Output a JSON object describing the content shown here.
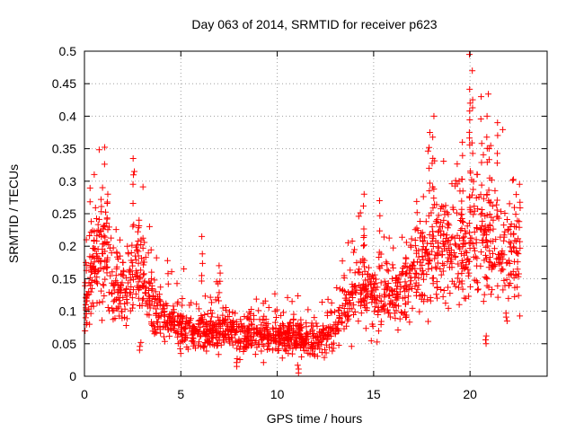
{
  "chart_data": {
    "type": "scatter",
    "title": "Day 063 of 2014, SRMTID for receiver p623",
    "xlabel": "GPS time / hours",
    "ylabel": "SRMTID / TECUs",
    "xlim": [
      0,
      24
    ],
    "ylim": [
      0,
      0.5
    ],
    "xticks": [
      0,
      5,
      10,
      15,
      20
    ],
    "xtick_labels": [
      "0",
      "5",
      "10",
      "15",
      "20"
    ],
    "yticks": [
      0,
      0.05,
      0.1,
      0.15,
      0.2,
      0.25,
      0.3,
      0.35,
      0.4,
      0.45,
      0.5
    ],
    "ytick_labels": [
      "0",
      "0.05",
      "0.1",
      "0.15",
      "0.2",
      "0.25",
      "0.3",
      "0.35",
      "0.4",
      "0.45",
      "0.5"
    ],
    "grid": true,
    "marker": "+",
    "marker_color": "#ff0000",
    "series": [
      {
        "name": "SRMTID p623",
        "profile": [
          {
            "x": 0.0,
            "y": 0.12
          },
          {
            "x": 0.5,
            "y": 0.17
          },
          {
            "x": 1.0,
            "y": 0.19
          },
          {
            "x": 1.5,
            "y": 0.15
          },
          {
            "x": 2.0,
            "y": 0.13
          },
          {
            "x": 2.5,
            "y": 0.15
          },
          {
            "x": 3.0,
            "y": 0.16
          },
          {
            "x": 3.5,
            "y": 0.12
          },
          {
            "x": 4.0,
            "y": 0.09
          },
          {
            "x": 5.0,
            "y": 0.075
          },
          {
            "x": 6.0,
            "y": 0.07
          },
          {
            "x": 7.0,
            "y": 0.07
          },
          {
            "x": 8.0,
            "y": 0.065
          },
          {
            "x": 9.0,
            "y": 0.065
          },
          {
            "x": 10.0,
            "y": 0.06
          },
          {
            "x": 11.0,
            "y": 0.06
          },
          {
            "x": 12.0,
            "y": 0.055
          },
          {
            "x": 13.0,
            "y": 0.07
          },
          {
            "x": 13.5,
            "y": 0.1
          },
          {
            "x": 14.0,
            "y": 0.14
          },
          {
            "x": 15.0,
            "y": 0.13
          },
          {
            "x": 16.0,
            "y": 0.12
          },
          {
            "x": 17.0,
            "y": 0.16
          },
          {
            "x": 18.0,
            "y": 0.19
          },
          {
            "x": 19.0,
            "y": 0.19
          },
          {
            "x": 20.0,
            "y": 0.2
          },
          {
            "x": 21.0,
            "y": 0.2
          },
          {
            "x": 22.0,
            "y": 0.19
          },
          {
            "x": 22.6,
            "y": 0.2
          }
        ],
        "x_range": [
          0,
          22.6
        ],
        "count": 1900,
        "peaks": [
          {
            "x": 0.9,
            "y": 0.29
          },
          {
            "x": 1.2,
            "y": 0.28
          },
          {
            "x": 2.55,
            "y": 0.335
          },
          {
            "x": 2.8,
            "y": 0.24
          },
          {
            "x": 6.1,
            "y": 0.215
          },
          {
            "x": 7.0,
            "y": 0.17
          },
          {
            "x": 14.5,
            "y": 0.28
          },
          {
            "x": 15.3,
            "y": 0.27
          },
          {
            "x": 17.9,
            "y": 0.375
          },
          {
            "x": 18.1,
            "y": 0.4
          },
          {
            "x": 19.6,
            "y": 0.36
          },
          {
            "x": 20.0,
            "y": 0.495
          },
          {
            "x": 20.1,
            "y": 0.47
          },
          {
            "x": 20.0,
            "y": 0.42
          },
          {
            "x": 20.6,
            "y": 0.43
          },
          {
            "x": 20.9,
            "y": 0.4
          },
          {
            "x": 21.4,
            "y": 0.39
          },
          {
            "x": 21.0,
            "y": 0.35
          }
        ],
        "lows": [
          {
            "x": 0.1,
            "y": 0.09
          },
          {
            "x": 2.9,
            "y": 0.04
          },
          {
            "x": 7.9,
            "y": 0.015
          },
          {
            "x": 11.1,
            "y": 0.005
          },
          {
            "x": 20.8,
            "y": 0.05
          },
          {
            "x": 21.9,
            "y": 0.085
          }
        ]
      }
    ]
  }
}
